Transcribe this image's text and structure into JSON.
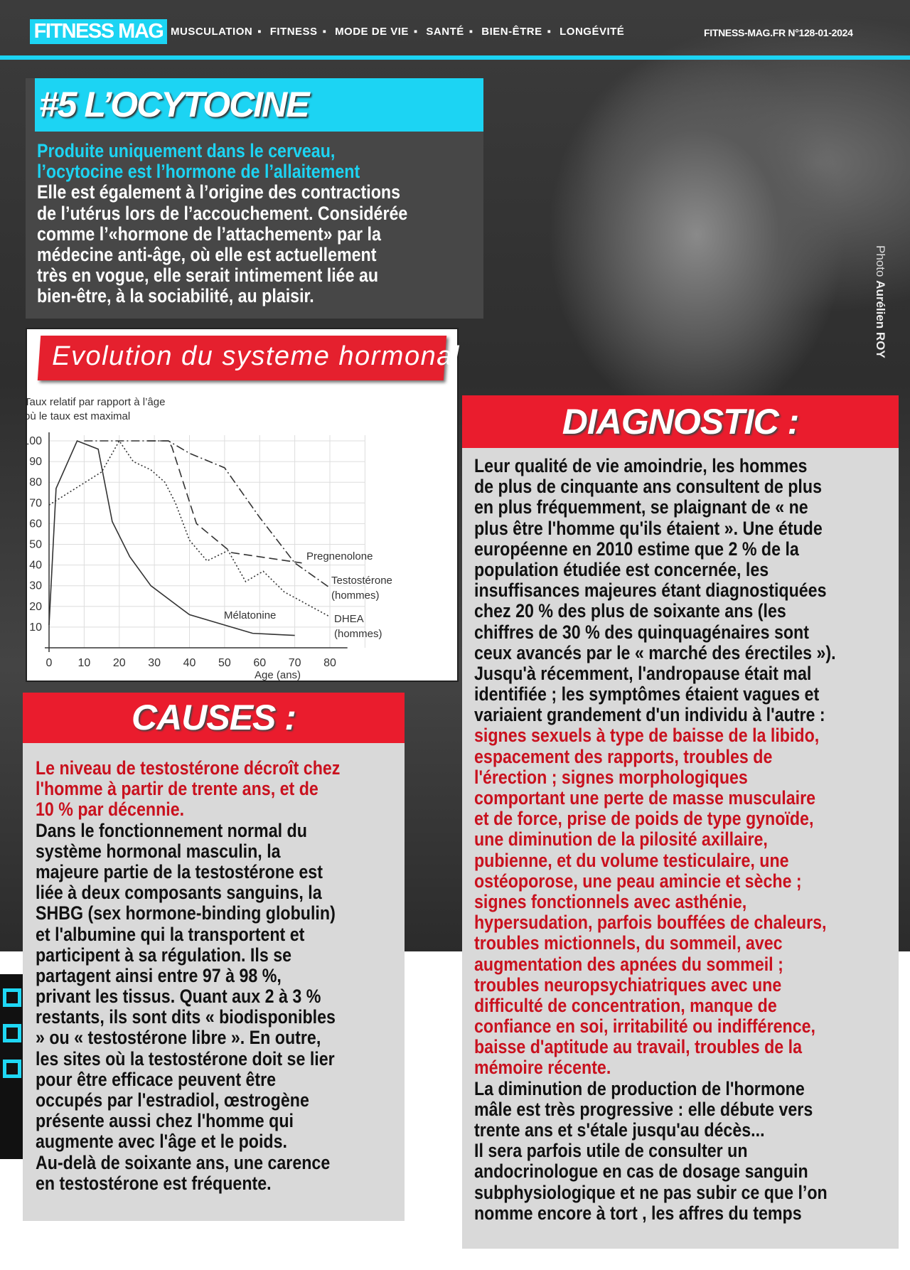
{
  "header": {
    "logo": "FITNESS MAG",
    "nav": [
      "MUSCULATION",
      "FITNESS",
      "MODE DE VIE",
      "SANTÉ",
      "BIEN-ÊTRE",
      "LONGÉVITÉ"
    ],
    "separator": "▪",
    "issue": "FITNESS-MAG.FR  N°128-01-2024"
  },
  "photo_credit": {
    "prefix": "Photo",
    "name": "Aurélien ROY"
  },
  "oxytocin": {
    "title": "#5 L’OCYTOCINE",
    "lead": [
      "Produite uniquement dans le cerveau,",
      "l’ocytocine est l’hormone de l’allaitement"
    ],
    "body": [
      "Elle est également à l’origine des contractions",
      "de l’utérus lors de l’accouchement. Considérée",
      "comme l’«hormone de l’attachement» par la",
      "médecine anti-âge, où elle est actuellement",
      "très en vogue, elle serait intimement liée au",
      "bien-être, à la sociabilité, au plaisir."
    ]
  },
  "chart_banner": "Evolution du systeme hormonal",
  "chart_data": {
    "type": "line",
    "title": "",
    "ylabel": [
      "Taux relatif par rapport à l’âge",
      "où le taux est maximal"
    ],
    "xlabel": "Age (ans)",
    "xlim": [
      0,
      80
    ],
    "ylim": [
      0,
      100
    ],
    "grid": true,
    "xticks": [
      "0",
      "10",
      "20",
      "30",
      "40",
      "50",
      "60",
      "70",
      "80"
    ],
    "yticks": [
      "10",
      "20",
      "30",
      "40",
      "50",
      "60",
      "70",
      "80",
      "90",
      "100"
    ],
    "series": [
      {
        "name": "Mélatonine",
        "style": "solid",
        "points": [
          [
            0,
            11
          ],
          [
            2,
            77
          ],
          [
            8,
            100
          ],
          [
            14,
            96
          ],
          [
            18,
            61
          ],
          [
            23,
            44
          ],
          [
            29,
            30
          ],
          [
            40,
            16
          ],
          [
            50,
            11
          ],
          [
            58,
            7
          ],
          [
            70,
            6
          ]
        ]
      },
      {
        "name": "DHEA (hommes)",
        "style": "dotted",
        "points": [
          [
            0,
            69
          ],
          [
            15,
            85
          ],
          [
            20,
            100
          ],
          [
            24,
            90
          ],
          [
            29,
            86
          ],
          [
            33,
            80
          ],
          [
            36,
            70
          ],
          [
            40,
            52
          ],
          [
            45,
            42
          ],
          [
            51,
            47
          ],
          [
            56,
            32
          ],
          [
            61,
            37
          ],
          [
            67,
            27
          ],
          [
            80,
            15
          ]
        ]
      },
      {
        "name": "Pregnenolone",
        "style": "dashed",
        "points": [
          [
            28,
            100
          ],
          [
            34,
            100
          ],
          [
            35,
            97
          ],
          [
            42,
            60
          ],
          [
            52,
            46
          ],
          [
            72,
            41
          ]
        ]
      },
      {
        "name": "Testostérone (hommes)",
        "style": "dashdot",
        "points": [
          [
            10,
            100
          ],
          [
            34,
            100
          ],
          [
            40,
            94
          ],
          [
            50,
            87
          ],
          [
            60,
            63
          ],
          [
            70,
            41
          ],
          [
            80,
            29
          ]
        ]
      }
    ],
    "labels": {
      "melatonine": "Mélatonine",
      "pregnenolone": "Pregnenolone",
      "testo1": "Testostérone",
      "testo2": "(hommes)",
      "dhea1": "DHEA",
      "dhea2": "(hommes)"
    }
  },
  "causes": {
    "title": "CAUSES :",
    "lead": [
      "Le niveau de testostérone décroît chez",
      "l'homme à partir de trente ans, et de",
      "10 % par décennie."
    ],
    "body": [
      "Dans le fonctionnement normal du",
      "système hormonal masculin, la",
      "majeure partie de la testostérone est",
      "liée à deux composants sanguins, la",
      "SHBG (sex hormone-binding globulin)",
      "et l'albumine qui la transportent et",
      "participent à sa régulation. Ils se",
      "partagent ainsi entre 97 à 98 %,",
      "privant les tissus. Quant aux 2 à 3 %",
      "restants, ils sont dits « biodisponibles",
      "» ou « testostérone libre ». En outre,",
      "les sites où la testostérone doit se lier",
      "pour être efficace peuvent être",
      "occupés par l'estradiol, œstrogène",
      "présente aussi chez l'homme qui",
      "augmente avec l'âge et le poids.",
      "Au-delà de soixante ans, une carence",
      "en testostérone est fréquente."
    ]
  },
  "diagnostic": {
    "title": "DIAGNOSTIC :",
    "body1": [
      "Leur qualité de vie amoindrie, les hommes",
      "de plus de cinquante ans consultent de plus",
      "en plus fréquemment, se plaignant de « ne",
      "plus être l'homme qu'ils étaient ». Une étude",
      "européenne en 2010 estime que 2 % de la",
      "population étudiée est concernée, les",
      "insuffisances majeures étant diagnostiquées",
      "chez 20 % des plus de soixante ans (les",
      "chiffres de 30 % des quinquagénaires sont",
      "ceux avancés par le « marché des érectiles »).",
      "Jusqu'à récemment, l'andropause était mal",
      "identifiée ; les symptômes étaient vagues et",
      "variaient grandement d'un individu à l'autre :"
    ],
    "symptoms": [
      "signes sexuels à type de baisse de la libido,",
      "espacement des rapports, troubles de",
      "l'érection ; signes morphologiques",
      "comportant une perte de masse musculaire",
      "et de force, prise de poids de type gynoïde,",
      "une diminution de la pilosité axillaire,",
      "pubienne, et du volume testiculaire, une",
      "ostéoporose, une peau amincie et sèche ;",
      "signes fonctionnels avec asthénie,",
      "hypersudation, parfois bouffées de chaleurs,",
      "troubles mictionnels, du sommeil, avec",
      "augmentation des apnées du sommeil ;",
      "troubles neuropsychiatriques avec une",
      "difficulté de concentration, manque de",
      "confiance en soi, irritabilité ou indifférence,",
      "baisse d'aptitude au travail, troubles de la",
      "mémoire récente."
    ],
    "body2": [
      "La diminution de production de l'hormone",
      "mâle est très progressive : elle débute vers",
      "trente ans et s'étale jusqu'au décès...",
      "Il sera parfois utile de consulter un",
      "andocrinologue en cas de dosage sanguin",
      "subphysiologique et ne pas subir ce que l’on",
      "nomme encore à tort , les affres du temps"
    ]
  },
  "colors": {
    "cyan": "#1cd4f3",
    "red": "#ea1c2d",
    "text_red": "#c9111e"
  }
}
